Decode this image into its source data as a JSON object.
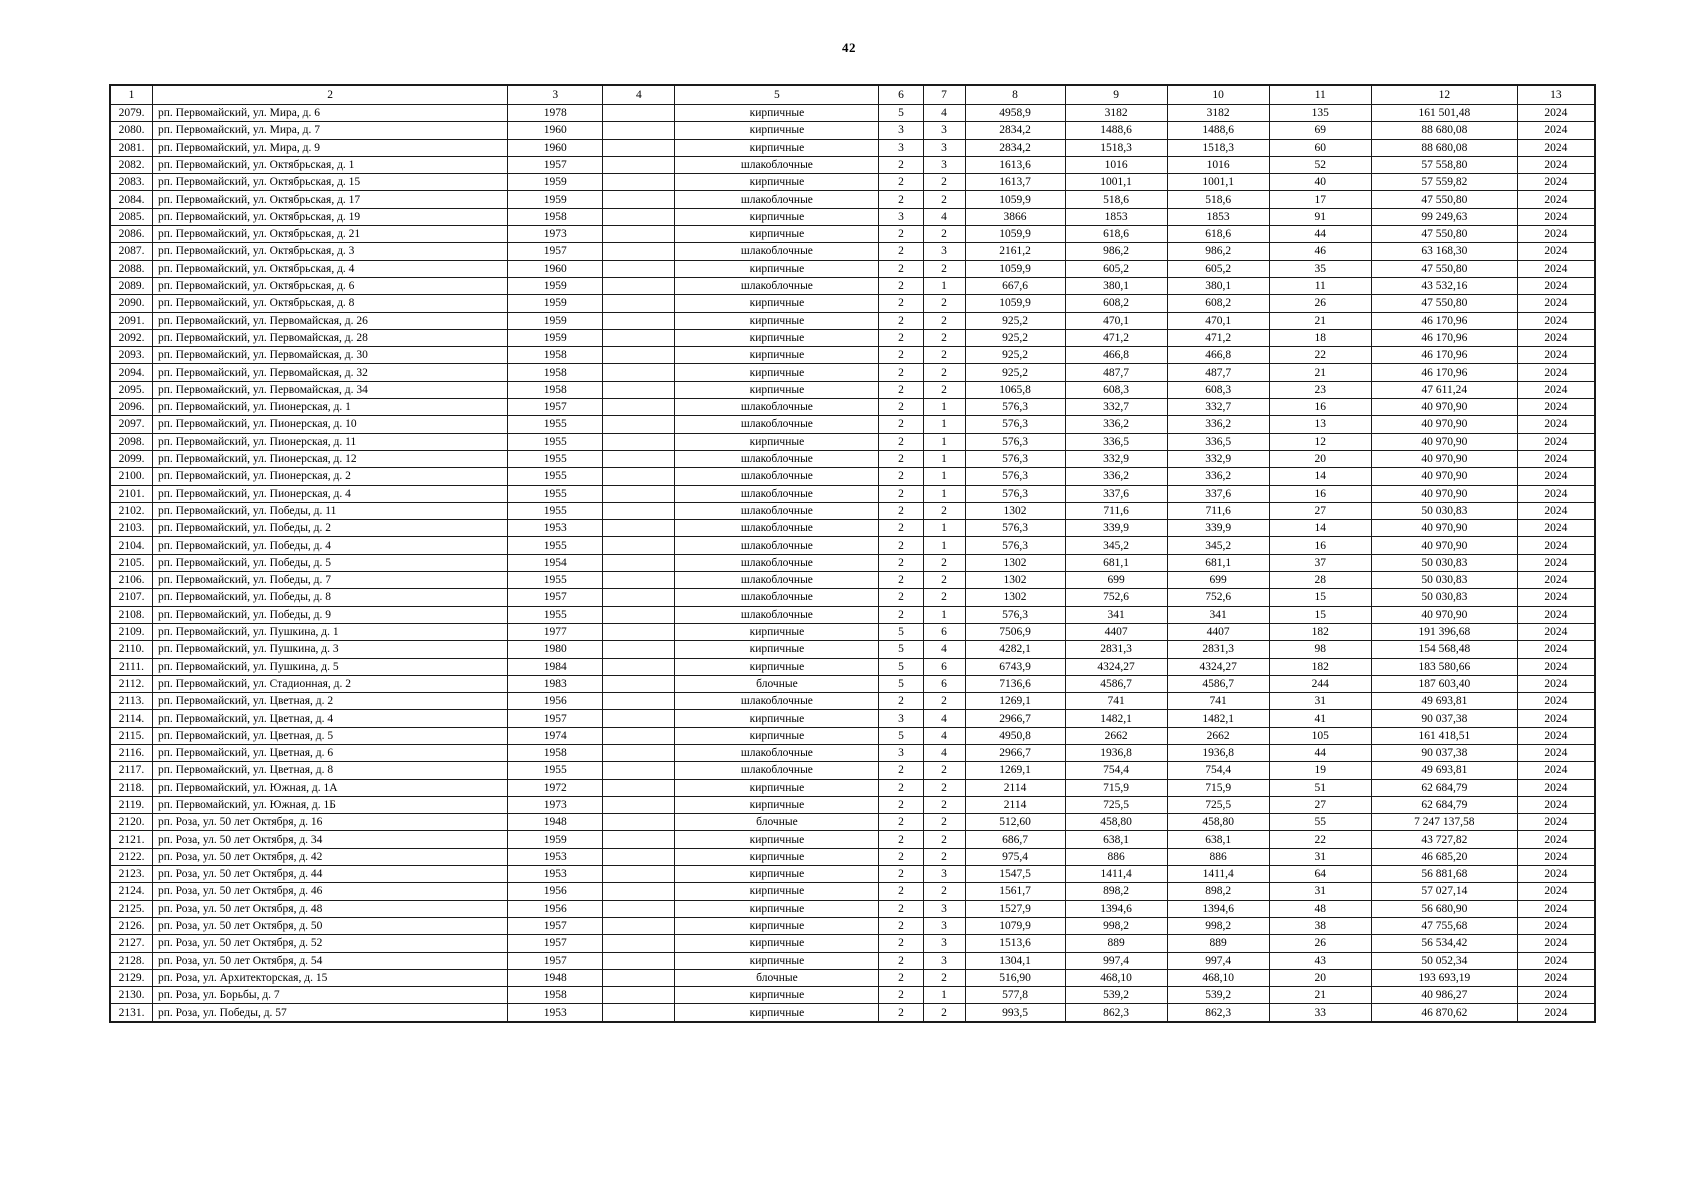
{
  "page": {
    "number": "42"
  },
  "table": {
    "headers": [
      "1",
      "2",
      "3",
      "4",
      "5",
      "6",
      "7",
      "8",
      "9",
      "10",
      "11",
      "12",
      "13"
    ],
    "rows": [
      [
        "2079.",
        "рп. Первомайский, ул. Мира, д. 6",
        "1978",
        "",
        "кирпичные",
        "5",
        "4",
        "4958,9",
        "3182",
        "3182",
        "135",
        "161 501,48",
        "2024"
      ],
      [
        "2080.",
        "рп. Первомайский, ул. Мира, д. 7",
        "1960",
        "",
        "кирпичные",
        "3",
        "3",
        "2834,2",
        "1488,6",
        "1488,6",
        "69",
        "88 680,08",
        "2024"
      ],
      [
        "2081.",
        "рп. Первомайский, ул. Мира, д. 9",
        "1960",
        "",
        "кирпичные",
        "3",
        "3",
        "2834,2",
        "1518,3",
        "1518,3",
        "60",
        "88 680,08",
        "2024"
      ],
      [
        "2082.",
        "рп. Первомайский, ул. Октябрьская, д. 1",
        "1957",
        "",
        "шлакоблочные",
        "2",
        "3",
        "1613,6",
        "1016",
        "1016",
        "52",
        "57 558,80",
        "2024"
      ],
      [
        "2083.",
        "рп. Первомайский, ул. Октябрьская, д. 15",
        "1959",
        "",
        "кирпичные",
        "2",
        "2",
        "1613,7",
        "1001,1",
        "1001,1",
        "40",
        "57 559,82",
        "2024"
      ],
      [
        "2084.",
        "рп. Первомайский, ул. Октябрьская, д. 17",
        "1959",
        "",
        "шлакоблочные",
        "2",
        "2",
        "1059,9",
        "518,6",
        "518,6",
        "17",
        "47 550,80",
        "2024"
      ],
      [
        "2085.",
        "рп. Первомайский, ул. Октябрьская, д. 19",
        "1958",
        "",
        "кирпичные",
        "3",
        "4",
        "3866",
        "1853",
        "1853",
        "91",
        "99 249,63",
        "2024"
      ],
      [
        "2086.",
        "рп. Первомайский, ул. Октябрьская, д. 21",
        "1973",
        "",
        "кирпичные",
        "2",
        "2",
        "1059,9",
        "618,6",
        "618,6",
        "44",
        "47 550,80",
        "2024"
      ],
      [
        "2087.",
        "рп. Первомайский, ул. Октябрьская, д. 3",
        "1957",
        "",
        "шлакоблочные",
        "2",
        "3",
        "2161,2",
        "986,2",
        "986,2",
        "46",
        "63 168,30",
        "2024"
      ],
      [
        "2088.",
        "рп. Первомайский, ул. Октябрьская, д. 4",
        "1960",
        "",
        "кирпичные",
        "2",
        "2",
        "1059,9",
        "605,2",
        "605,2",
        "35",
        "47 550,80",
        "2024"
      ],
      [
        "2089.",
        "рп. Первомайский, ул. Октябрьская, д. 6",
        "1959",
        "",
        "шлакоблочные",
        "2",
        "1",
        "667,6",
        "380,1",
        "380,1",
        "11",
        "43 532,16",
        "2024"
      ],
      [
        "2090.",
        "рп. Первомайский, ул. Октябрьская, д. 8",
        "1959",
        "",
        "кирпичные",
        "2",
        "2",
        "1059,9",
        "608,2",
        "608,2",
        "26",
        "47 550,80",
        "2024"
      ],
      [
        "2091.",
        "рп. Первомайский, ул. Первомайская, д. 26",
        "1959",
        "",
        "кирпичные",
        "2",
        "2",
        "925,2",
        "470,1",
        "470,1",
        "21",
        "46 170,96",
        "2024"
      ],
      [
        "2092.",
        "рп. Первомайский, ул. Первомайская, д. 28",
        "1959",
        "",
        "кирпичные",
        "2",
        "2",
        "925,2",
        "471,2",
        "471,2",
        "18",
        "46 170,96",
        "2024"
      ],
      [
        "2093.",
        "рп. Первомайский, ул. Первомайская, д. 30",
        "1958",
        "",
        "кирпичные",
        "2",
        "2",
        "925,2",
        "466,8",
        "466,8",
        "22",
        "46 170,96",
        "2024"
      ],
      [
        "2094.",
        "рп. Первомайский, ул. Первомайская, д. 32",
        "1958",
        "",
        "кирпичные",
        "2",
        "2",
        "925,2",
        "487,7",
        "487,7",
        "21",
        "46 170,96",
        "2024"
      ],
      [
        "2095.",
        "рп. Первомайский, ул. Первомайская, д. 34",
        "1958",
        "",
        "кирпичные",
        "2",
        "2",
        "1065,8",
        "608,3",
        "608,3",
        "23",
        "47 611,24",
        "2024"
      ],
      [
        "2096.",
        "рп. Первомайский, ул. Пионерская, д. 1",
        "1957",
        "",
        "шлакоблочные",
        "2",
        "1",
        "576,3",
        "332,7",
        "332,7",
        "16",
        "40 970,90",
        "2024"
      ],
      [
        "2097.",
        "рп. Первомайский, ул. Пионерская, д. 10",
        "1955",
        "",
        "шлакоблочные",
        "2",
        "1",
        "576,3",
        "336,2",
        "336,2",
        "13",
        "40 970,90",
        "2024"
      ],
      [
        "2098.",
        "рп. Первомайский, ул. Пионерская, д. 11",
        "1955",
        "",
        "кирпичные",
        "2",
        "1",
        "576,3",
        "336,5",
        "336,5",
        "12",
        "40 970,90",
        "2024"
      ],
      [
        "2099.",
        "рп. Первомайский, ул. Пионерская, д. 12",
        "1955",
        "",
        "шлакоблочные",
        "2",
        "1",
        "576,3",
        "332,9",
        "332,9",
        "20",
        "40 970,90",
        "2024"
      ],
      [
        "2100.",
        "рп. Первомайский, ул. Пионерская, д. 2",
        "1955",
        "",
        "шлакоблочные",
        "2",
        "1",
        "576,3",
        "336,2",
        "336,2",
        "14",
        "40 970,90",
        "2024"
      ],
      [
        "2101.",
        "рп. Первомайский, ул. Пионерская, д. 4",
        "1955",
        "",
        "шлакоблочные",
        "2",
        "1",
        "576,3",
        "337,6",
        "337,6",
        "16",
        "40 970,90",
        "2024"
      ],
      [
        "2102.",
        "рп. Первомайский, ул. Победы, д. 11",
        "1955",
        "",
        "шлакоблочные",
        "2",
        "2",
        "1302",
        "711,6",
        "711,6",
        "27",
        "50 030,83",
        "2024"
      ],
      [
        "2103.",
        "рп. Первомайский, ул. Победы, д. 2",
        "1953",
        "",
        "шлакоблочные",
        "2",
        "1",
        "576,3",
        "339,9",
        "339,9",
        "14",
        "40 970,90",
        "2024"
      ],
      [
        "2104.",
        "рп. Первомайский, ул. Победы, д. 4",
        "1955",
        "",
        "шлакоблочные",
        "2",
        "1",
        "576,3",
        "345,2",
        "345,2",
        "16",
        "40 970,90",
        "2024"
      ],
      [
        "2105.",
        "рп. Первомайский, ул. Победы, д. 5",
        "1954",
        "",
        "шлакоблочные",
        "2",
        "2",
        "1302",
        "681,1",
        "681,1",
        "37",
        "50 030,83",
        "2024"
      ],
      [
        "2106.",
        "рп. Первомайский, ул. Победы, д. 7",
        "1955",
        "",
        "шлакоблочные",
        "2",
        "2",
        "1302",
        "699",
        "699",
        "28",
        "50 030,83",
        "2024"
      ],
      [
        "2107.",
        "рп. Первомайский, ул. Победы, д. 8",
        "1957",
        "",
        "шлакоблочные",
        "2",
        "2",
        "1302",
        "752,6",
        "752,6",
        "15",
        "50 030,83",
        "2024"
      ],
      [
        "2108.",
        "рп. Первомайский, ул. Победы, д. 9",
        "1955",
        "",
        "шлакоблочные",
        "2",
        "1",
        "576,3",
        "341",
        "341",
        "15",
        "40 970,90",
        "2024"
      ],
      [
        "2109.",
        "рп. Первомайский, ул. Пушкина, д. 1",
        "1977",
        "",
        "кирпичные",
        "5",
        "6",
        "7506,9",
        "4407",
        "4407",
        "182",
        "191 396,68",
        "2024"
      ],
      [
        "2110.",
        "рп. Первомайский, ул. Пушкина, д. 3",
        "1980",
        "",
        "кирпичные",
        "5",
        "4",
        "4282,1",
        "2831,3",
        "2831,3",
        "98",
        "154 568,48",
        "2024"
      ],
      [
        "2111.",
        "рп. Первомайский, ул. Пушкина, д. 5",
        "1984",
        "",
        "кирпичные",
        "5",
        "6",
        "6743,9",
        "4324,27",
        "4324,27",
        "182",
        "183 580,66",
        "2024"
      ],
      [
        "2112.",
        "рп. Первомайский, ул. Стадионная, д. 2",
        "1983",
        "",
        "блочные",
        "5",
        "6",
        "7136,6",
        "4586,7",
        "4586,7",
        "244",
        "187 603,40",
        "2024"
      ],
      [
        "2113.",
        "рп. Первомайский, ул. Цветная, д. 2",
        "1956",
        "",
        "шлакоблочные",
        "2",
        "2",
        "1269,1",
        "741",
        "741",
        "31",
        "49 693,81",
        "2024"
      ],
      [
        "2114.",
        "рп. Первомайский, ул. Цветная, д. 4",
        "1957",
        "",
        "кирпичные",
        "3",
        "4",
        "2966,7",
        "1482,1",
        "1482,1",
        "41",
        "90 037,38",
        "2024"
      ],
      [
        "2115.",
        "рп. Первомайский, ул. Цветная, д. 5",
        "1974",
        "",
        "кирпичные",
        "5",
        "4",
        "4950,8",
        "2662",
        "2662",
        "105",
        "161 418,51",
        "2024"
      ],
      [
        "2116.",
        "рп. Первомайский, ул. Цветная, д. 6",
        "1958",
        "",
        "шлакоблочные",
        "3",
        "4",
        "2966,7",
        "1936,8",
        "1936,8",
        "44",
        "90 037,38",
        "2024"
      ],
      [
        "2117.",
        "рп. Первомайский, ул. Цветная, д. 8",
        "1955",
        "",
        "шлакоблочные",
        "2",
        "2",
        "1269,1",
        "754,4",
        "754,4",
        "19",
        "49 693,81",
        "2024"
      ],
      [
        "2118.",
        "рп. Первомайский, ул. Южная, д. 1А",
        "1972",
        "",
        "кирпичные",
        "2",
        "2",
        "2114",
        "715,9",
        "715,9",
        "51",
        "62 684,79",
        "2024"
      ],
      [
        "2119.",
        "рп. Первомайский, ул. Южная, д. 1Б",
        "1973",
        "",
        "кирпичные",
        "2",
        "2",
        "2114",
        "725,5",
        "725,5",
        "27",
        "62 684,79",
        "2024"
      ],
      [
        "2120.",
        "рп. Роза, ул. 50 лет Октября, д. 16",
        "1948",
        "",
        "блочные",
        "2",
        "2",
        "512,60",
        "458,80",
        "458,80",
        "55",
        "7 247 137,58",
        "2024"
      ],
      [
        "2121.",
        "рп. Роза, ул. 50 лет Октября, д. 34",
        "1959",
        "",
        "кирпичные",
        "2",
        "2",
        "686,7",
        "638,1",
        "638,1",
        "22",
        "43 727,82",
        "2024"
      ],
      [
        "2122.",
        "рп. Роза, ул. 50 лет Октября, д. 42",
        "1953",
        "",
        "кирпичные",
        "2",
        "2",
        "975,4",
        "886",
        "886",
        "31",
        "46 685,20",
        "2024"
      ],
      [
        "2123.",
        "рп. Роза, ул. 50 лет Октября, д. 44",
        "1953",
        "",
        "кирпичные",
        "2",
        "3",
        "1547,5",
        "1411,4",
        "1411,4",
        "64",
        "56 881,68",
        "2024"
      ],
      [
        "2124.",
        "рп. Роза, ул. 50 лет Октября, д. 46",
        "1956",
        "",
        "кирпичные",
        "2",
        "2",
        "1561,7",
        "898,2",
        "898,2",
        "31",
        "57 027,14",
        "2024"
      ],
      [
        "2125.",
        "рп. Роза, ул. 50 лет Октября, д. 48",
        "1956",
        "",
        "кирпичные",
        "2",
        "3",
        "1527,9",
        "1394,6",
        "1394,6",
        "48",
        "56 680,90",
        "2024"
      ],
      [
        "2126.",
        "рп. Роза, ул. 50 лет Октября, д. 50",
        "1957",
        "",
        "кирпичные",
        "2",
        "3",
        "1079,9",
        "998,2",
        "998,2",
        "38",
        "47 755,68",
        "2024"
      ],
      [
        "2127.",
        "рп. Роза, ул. 50 лет Октября, д. 52",
        "1957",
        "",
        "кирпичные",
        "2",
        "3",
        "1513,6",
        "889",
        "889",
        "26",
        "56 534,42",
        "2024"
      ],
      [
        "2128.",
        "рп. Роза, ул. 50 лет Октября, д. 54",
        "1957",
        "",
        "кирпичные",
        "2",
        "3",
        "1304,1",
        "997,4",
        "997,4",
        "43",
        "50 052,34",
        "2024"
      ],
      [
        "2129.",
        "рп. Роза, ул. Архитекторская, д. 15",
        "1948",
        "",
        "блочные",
        "2",
        "2",
        "516,90",
        "468,10",
        "468,10",
        "20",
        "193 693,19",
        "2024"
      ],
      [
        "2130.",
        "рп. Роза, ул. Борьбы, д. 7",
        "1958",
        "",
        "кирпичные",
        "2",
        "1",
        "577,8",
        "539,2",
        "539,2",
        "21",
        "40 986,27",
        "2024"
      ],
      [
        "2131.",
        "рп. Роза, ул. Победы, д. 57",
        "1953",
        "",
        "кирпичные",
        "2",
        "2",
        "993,5",
        "862,3",
        "862,3",
        "33",
        "46 870,62",
        "2024"
      ]
    ]
  }
}
